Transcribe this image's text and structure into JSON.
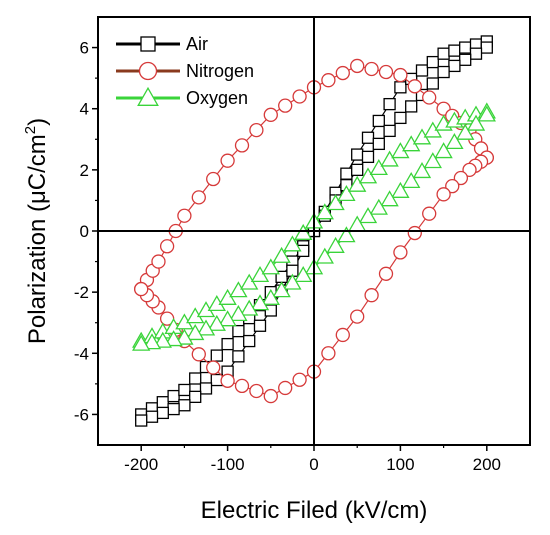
{
  "chart_data": {
    "type": "line",
    "title": "",
    "xlabel": "Electric Filed (kV/cm)",
    "ylabel": "Polarization (μC/cm",
    "ylabel_superscript": "2",
    "ylabel_close": ")",
    "xlim": [
      -250,
      250
    ],
    "ylim": [
      -7,
      7
    ],
    "xticks": [
      -200,
      -100,
      0,
      100,
      200
    ],
    "yticks": [
      -6,
      -4,
      -2,
      0,
      2,
      4,
      6
    ],
    "xtick_labels": [
      "-200",
      "-100",
      "0",
      "100",
      "200"
    ],
    "ytick_labels": [
      "-6",
      "-4",
      "-2",
      "0",
      "2",
      "4",
      "6"
    ],
    "grid": false,
    "reference_lines": {
      "x": 0,
      "y": 0
    },
    "legend_position": "top-left",
    "series": [
      {
        "name": "Air",
        "marker": "square",
        "color": "#000000",
        "upper": {
          "x": [
            -200,
            -150,
            -100,
            -50,
            0,
            50,
            100,
            150,
            200
          ],
          "y": [
            -6.0,
            -5.2,
            -3.7,
            -2.0,
            0.0,
            2.5,
            4.7,
            5.8,
            6.2
          ]
        },
        "lower": {
          "x": [
            -200,
            -150,
            -100,
            -50,
            0,
            50,
            100,
            150,
            200
          ],
          "y": [
            -6.2,
            -5.7,
            -4.6,
            -2.6,
            0.0,
            2.0,
            3.7,
            5.2,
            6.0
          ]
        }
      },
      {
        "name": "Nitrogen",
        "marker": "circle",
        "color": "#d63a3a",
        "upper": {
          "x": [
            -200,
            -180,
            -150,
            -100,
            -50,
            0,
            50,
            100,
            150,
            180,
            200
          ],
          "y": [
            -1.9,
            -1.0,
            0.5,
            2.3,
            3.8,
            4.7,
            5.4,
            5.1,
            4.0,
            3.3,
            2.4
          ]
        },
        "lower": {
          "x": [
            -200,
            -180,
            -150,
            -100,
            -50,
            0,
            50,
            100,
            150,
            180,
            200
          ],
          "y": [
            -1.9,
            -2.5,
            -3.6,
            -4.9,
            -5.4,
            -4.6,
            -2.8,
            -0.7,
            1.2,
            2.0,
            2.4
          ]
        }
      },
      {
        "name": "Oxygen",
        "marker": "triangle",
        "color": "#3ad43a",
        "upper": {
          "x": [
            -200,
            -150,
            -100,
            -50,
            0,
            50,
            100,
            150,
            200
          ],
          "y": [
            -3.6,
            -3.0,
            -2.2,
            -1.2,
            0.3,
            1.5,
            2.6,
            3.5,
            3.9
          ]
        },
        "lower": {
          "x": [
            -200,
            -150,
            -100,
            -50,
            0,
            50,
            100,
            150,
            200
          ],
          "y": [
            -3.7,
            -3.5,
            -2.9,
            -2.2,
            -1.2,
            0.2,
            1.3,
            2.6,
            3.8
          ]
        }
      }
    ]
  }
}
